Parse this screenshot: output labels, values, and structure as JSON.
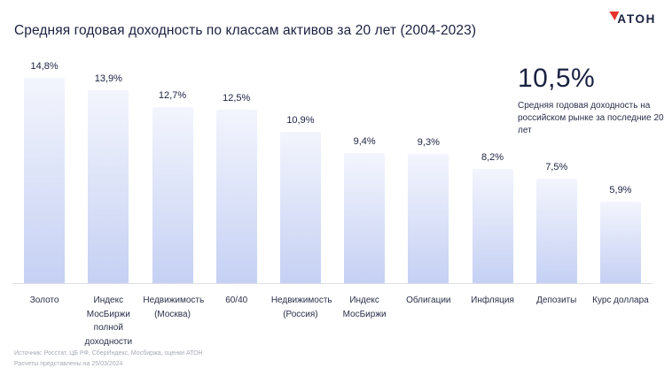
{
  "header": {
    "logo_text": "АТОН"
  },
  "chart_data": {
    "type": "bar",
    "title": "Средняя годовая доходность по классам активов за 20 лет (2004-2023)",
    "categories": [
      "Золото",
      "Индекс МосБиржи полной доходности",
      "Недвижимость (Москва)",
      "60/40",
      "Недвижимость (Россия)",
      "Индекс МосБиржи",
      "Облигации",
      "Инфляция",
      "Депозиты",
      "Курс доллара"
    ],
    "values": [
      14.8,
      13.9,
      12.7,
      12.5,
      10.9,
      9.4,
      9.3,
      8.2,
      7.5,
      5.9
    ],
    "value_labels": [
      "14,8%",
      "13,9%",
      "12,7%",
      "12,5%",
      "10,9%",
      "9,4%",
      "9,3%",
      "8,2%",
      "7,5%",
      "5,9%"
    ],
    "xlabel": "",
    "ylabel": "",
    "ylim": [
      0,
      15
    ],
    "grid": false,
    "legend": false,
    "bar_color_top": "#f3f5fd",
    "bar_color_bottom": "#c5d0f3",
    "annotation": {
      "value": "10,5%",
      "description": "Средняя годовая доходность на российском рынке за последние 20 лет"
    }
  },
  "colors": {
    "title_text": "#1b2141",
    "accent_red": "#e8332b",
    "axis_line": "#dcdfe6",
    "footer_text": "#a6aab4"
  },
  "footer": {
    "source": "Источник: Росстат, ЦБ РФ, СберИндекс, Мосбиржа, оценки АТОН",
    "note": "Расчеты представлены на 25/03/2024"
  }
}
